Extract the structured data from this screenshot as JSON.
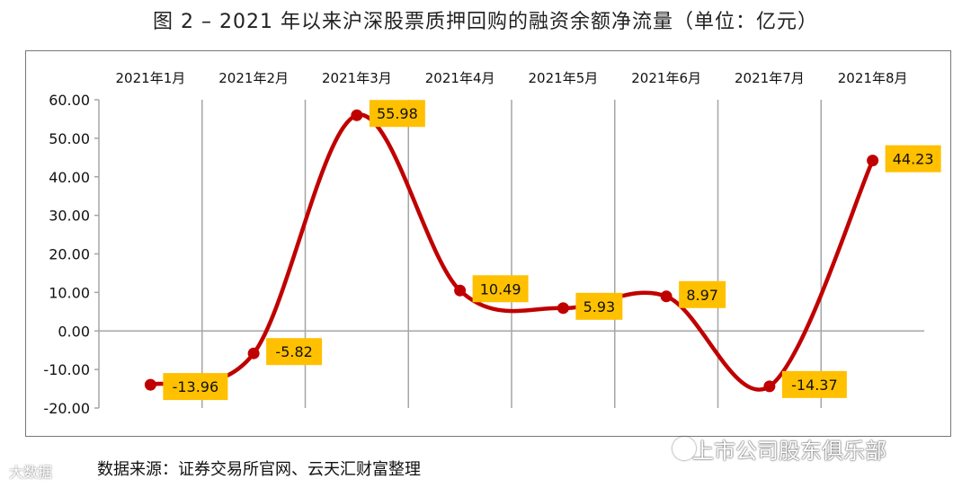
{
  "title": "图 2 –    2021 年以来沪深股票质押回购的融资余额净流量（单位：亿元）",
  "source": "数据来源：证券交易所官网、云天汇财富整理",
  "watermark_right": "上市公司股东俱乐部",
  "watermark_left": "大数据",
  "chart_data": {
    "type": "line",
    "categories": [
      "2021年1月",
      "2021年2月",
      "2021年3月",
      "2021年4月",
      "2021年5月",
      "2021年6月",
      "2021年7月",
      "2021年8月"
    ],
    "series": [
      {
        "values": [
          -13.96,
          -5.82,
          55.98,
          10.49,
          5.93,
          8.97,
          -14.37,
          44.23
        ]
      }
    ],
    "data_labels": [
      "-13.96",
      "-5.82",
      "55.98",
      "10.49",
      "5.93",
      "8.97",
      "-14.37",
      "44.23"
    ],
    "y_ticks": [
      "60.00",
      "50.00",
      "40.00",
      "30.00",
      "20.00",
      "10.00",
      "0.00",
      "-10.00",
      "-20.00"
    ],
    "ylim": [
      -20,
      60
    ],
    "x_axis_position": "top",
    "smooth": true,
    "grid": "vertical",
    "colors": {
      "line": "#c00000",
      "marker": "#c00000",
      "label_bg": "#ffc000",
      "grid": "#a6a6a6"
    }
  }
}
